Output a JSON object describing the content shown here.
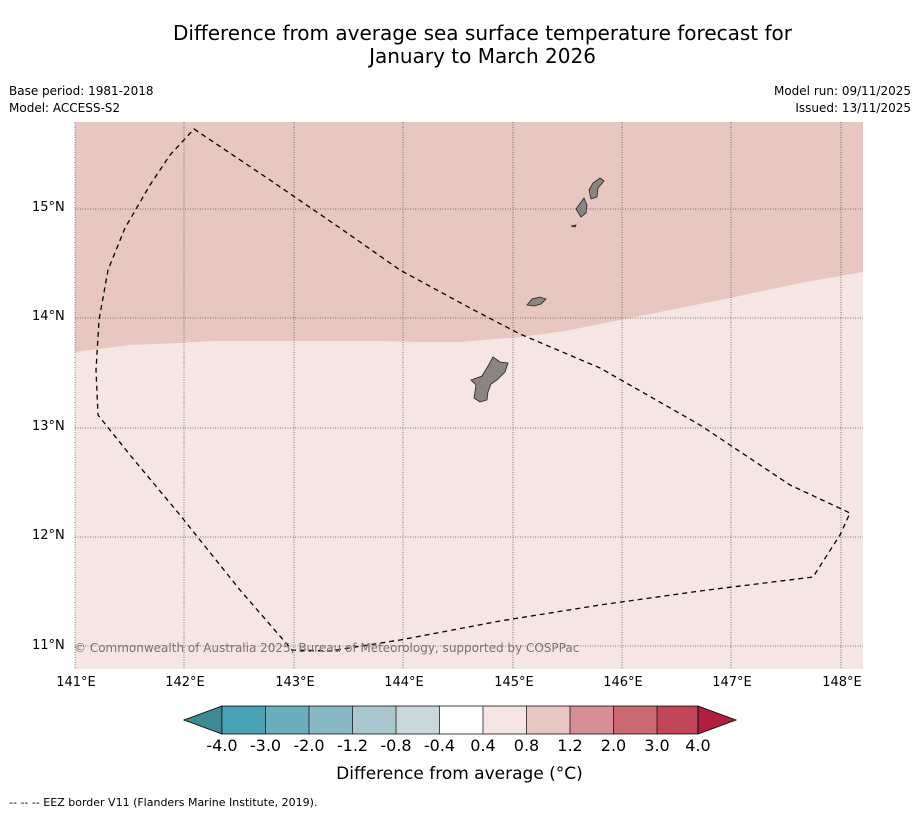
{
  "title_line1": "Difference from average sea surface temperature forecast for",
  "title_line2": "January to March 2026",
  "base_period": "Base period: 1981-2018",
  "model": "Model: ACCESS-S2",
  "model_run": "Model run: 09/11/2025",
  "issued": "Issued: 13/11/2025",
  "lat_labels": [
    "15°N",
    "14°N",
    "13°N",
    "12°N",
    "11°N"
  ],
  "lon_labels": [
    "141°E",
    "142°E",
    "143°E",
    "144°E",
    "145°E",
    "146°E",
    "147°E",
    "148°E"
  ],
  "copyright": "© Commonwealth of Australia 2025, Bureau of Meteorology, supported by COSPPac",
  "colorbar": {
    "title": "Difference from average (°C)",
    "ticks": [
      "-4.0",
      "-3.0",
      "-2.0",
      "-1.2",
      "-0.8",
      "-0.4",
      "0.4",
      "0.8",
      "1.2",
      "2.0",
      "3.0",
      "4.0"
    ],
    "colors": [
      "#4aa3b4",
      "#6aadbd",
      "#8ab8c4",
      "#a9c7cc",
      "#c9d8da",
      "#ffffff",
      "#f5e6e4",
      "#e8c6c1",
      "#d78f96",
      "#cc6871",
      "#c04658"
    ],
    "under_color": "#3f8895",
    "over_color": "#b01f3d"
  },
  "regions": {
    "upper_band": {
      "anomaly_range": "0.8 to 1.2",
      "color": "#e8c6c1"
    },
    "lower_band": {
      "anomaly_range": "0.4 to 0.8",
      "color": "#f5e6e4"
    }
  },
  "legend_note": "--  --  -- EEZ border V11 (Flanders Marine Institute, 2019)."
}
